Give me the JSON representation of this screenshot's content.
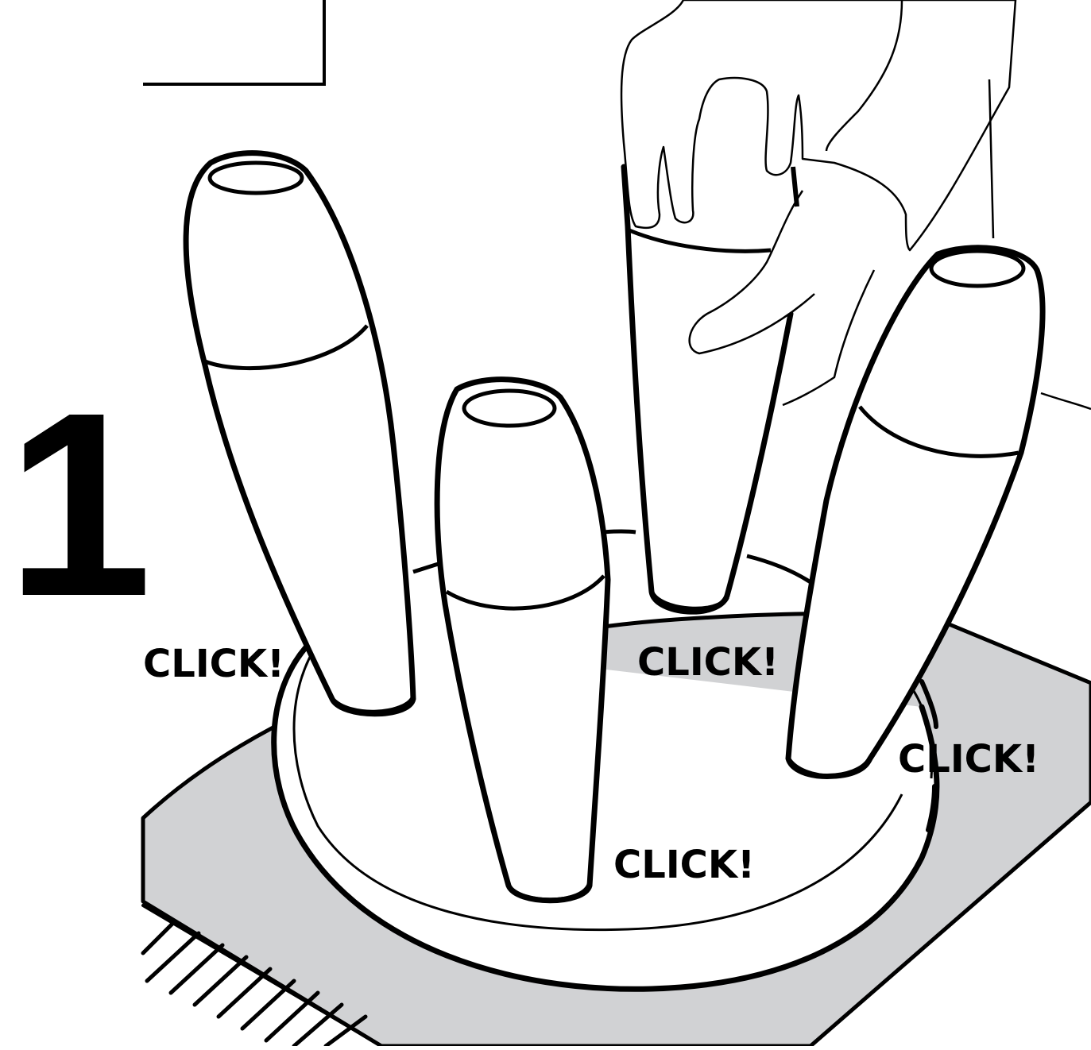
{
  "step": {
    "number": "1"
  },
  "callouts": {
    "click_1": "CLICK!",
    "click_2": "CLICK!",
    "click_3": "CLICK!",
    "click_4": "CLICK!"
  },
  "colors": {
    "ink": "#000000",
    "paper": "#ffffff",
    "floor_mat": "#d1d2d4"
  },
  "icons": {
    "hand": "hand-icon",
    "leg": "furniture-leg-icon",
    "base": "round-base-icon"
  }
}
